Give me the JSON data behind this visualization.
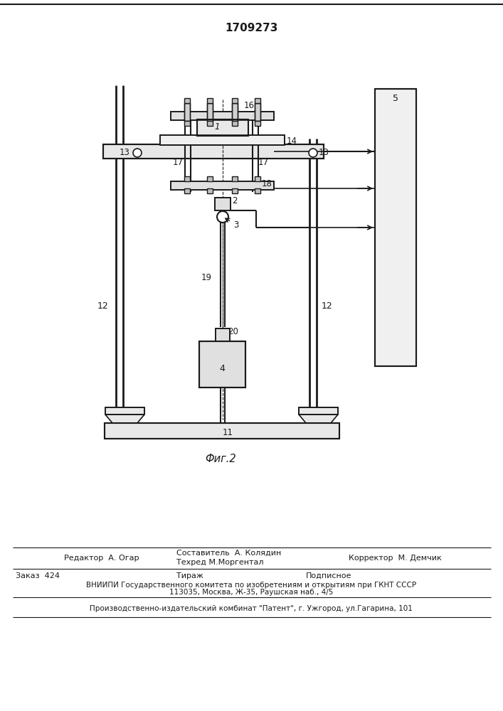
{
  "patent_number": "1709273",
  "fig_label": "Фиг.2",
  "bg_color": "#ffffff",
  "line_color": "#1a1a1a",
  "footer": {
    "editor": "Редактор  А. Огар",
    "composer_label": "Составитель  А. Колядин",
    "techred_label": "Техред М.Моргентал",
    "corrector_label": "Корректор  М. Демчик",
    "order": "Заказ  424",
    "tirazh": "Тираж",
    "podpisnoe": "Подписное",
    "vniiipi_line1": "ВНИИПИ Государственного комитета по изобретениям и открытиям при ГКНТ СССР",
    "vniiipi_line2": "113035, Москва, Ж-35, Раушская наб., 4/5",
    "publisher": "Производственно-издательский комбинат \"Патент\", г. Ужгород, ул.Гагарина, 101"
  }
}
